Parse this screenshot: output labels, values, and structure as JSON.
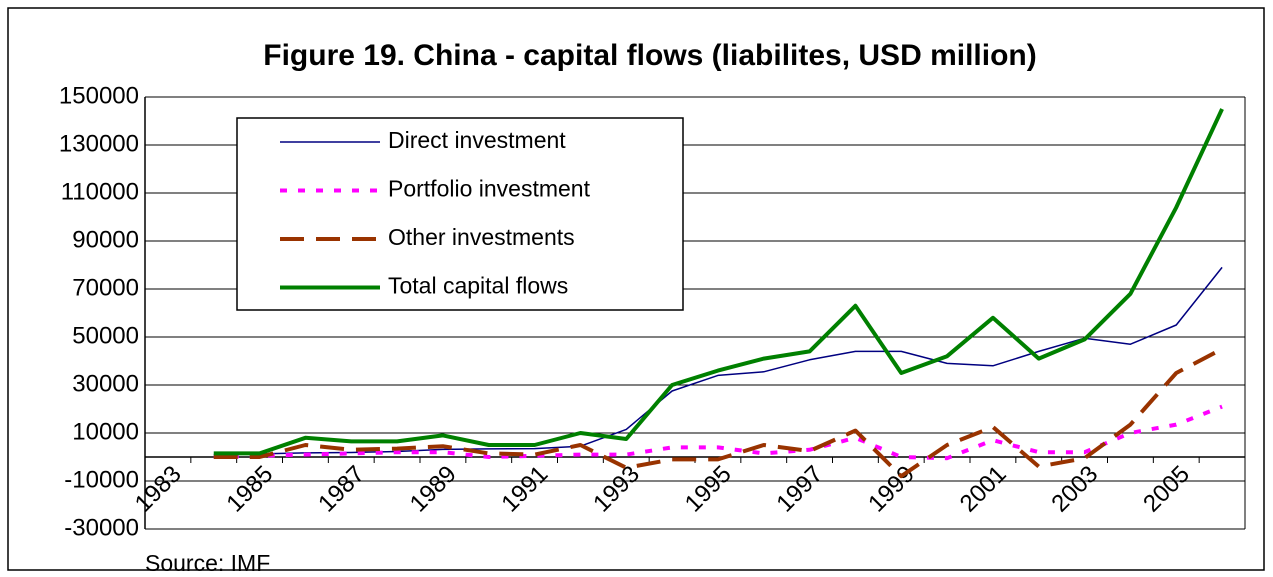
{
  "chart_data": {
    "type": "line",
    "title": "Figure 19. China - capital flows (liabilites, USD million)",
    "source": "Source:  IMF",
    "categories": [
      "1983",
      null,
      "1985",
      null,
      "1987",
      null,
      "1989",
      null,
      "1991",
      null,
      "1993",
      null,
      "1995",
      null,
      "1997",
      null,
      "1999",
      null,
      "2001",
      null,
      "2003",
      null,
      "2005",
      null
    ],
    "series": [
      {
        "name": "Direct investment",
        "color": "#000080",
        "values": [
          null,
          1000,
          1300,
          1700,
          1900,
          2300,
          3200,
          3400,
          3500,
          4500,
          11500,
          27500,
          34000,
          35500,
          40500,
          44000,
          44000,
          39000,
          38000,
          44000,
          49500,
          47000,
          55000,
          79000
        ]
      },
      {
        "name": "Portfolio investment",
        "color": "#ff00ff",
        "values": [
          null,
          0,
          500,
          1000,
          1500,
          2000,
          2000,
          0,
          500,
          1000,
          1000,
          4000,
          4000,
          1500,
          3000,
          8000,
          0,
          -500,
          7000,
          2000,
          2000,
          10000,
          13500,
          21000
        ]
      },
      {
        "name": "Other investments",
        "color": "#993300",
        "values": [
          null,
          0,
          0,
          5000,
          3000,
          3500,
          4500,
          1500,
          1000,
          5000,
          -4500,
          -1000,
          -1000,
          5000,
          2500,
          11000,
          -8000,
          5000,
          12500,
          -4000,
          -500,
          13500,
          35000,
          45000
        ]
      },
      {
        "name": "Total capital flows",
        "color": "#008000",
        "values": [
          null,
          1500,
          1500,
          8000,
          6500,
          6500,
          9000,
          5000,
          5000,
          10000,
          7500,
          30000,
          36000,
          41000,
          44000,
          63000,
          35000,
          42000,
          58000,
          41000,
          49000,
          68000,
          104000,
          145000
        ]
      }
    ],
    "ylim": [
      -30000,
      150000
    ],
    "yticks": [
      150000,
      130000,
      110000,
      90000,
      70000,
      50000,
      30000,
      10000,
      -10000,
      -30000
    ],
    "grid": true
  }
}
